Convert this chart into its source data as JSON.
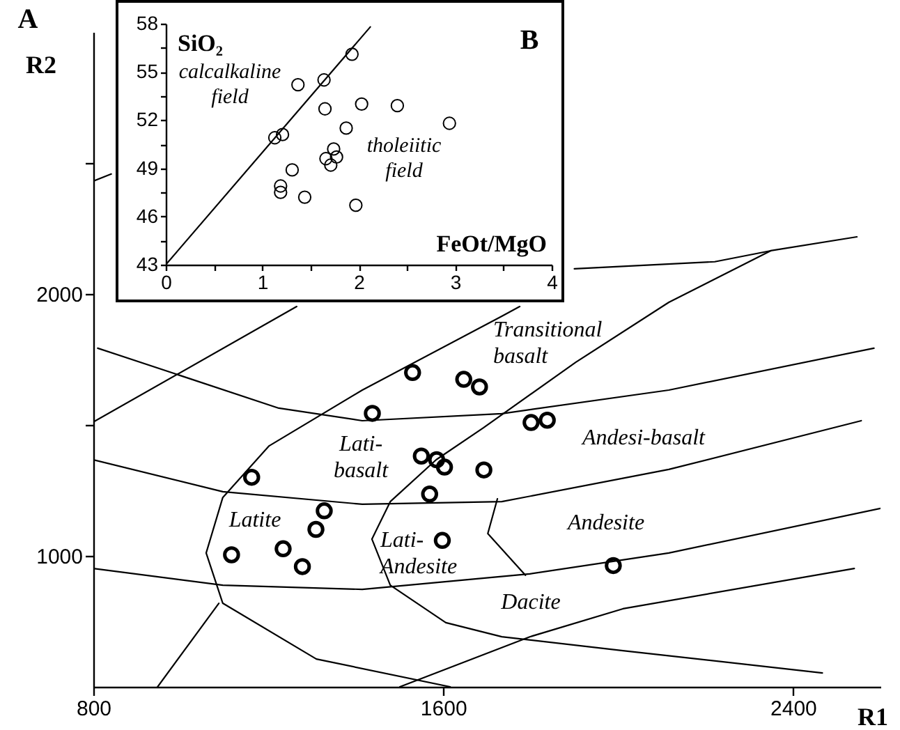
{
  "chart_data": [
    {
      "type": "scatter",
      "xlabel": "R1",
      "ylabel": "R2",
      "xlim": [
        800,
        2600
      ],
      "ylim": [
        500,
        3000
      ],
      "xticks": [
        800,
        1600,
        2400
      ],
      "yticks": [
        1000,
        {
          "value": 1500,
          "label": null
        },
        2000,
        {
          "value": 2500,
          "label": null
        }
      ],
      "annotations": [
        "A",
        "Transitional\nbasalt",
        "Lati-\nbasalt",
        "Andesi-basalt",
        "Latite",
        "Lati-\nAndesite",
        "Andesite",
        "Dacite"
      ],
      "series": [
        {
          "type": "line",
          "color": "#000000",
          "x": [
            800,
            1265
          ],
          "values": [
            1511,
            1952
          ]
        },
        {
          "type": "line",
          "color": "#000000",
          "x": [
            800,
            841
          ],
          "values": [
            2431,
            2458
          ]
        },
        {
          "type": "line",
          "color": "#000000",
          "x": [
            810,
            1224,
            1415,
            1734,
            2116,
            2585
          ],
          "values": [
            1793,
            1564,
            1516,
            1543,
            1633,
            1793
          ]
        },
        {
          "type": "line",
          "color": "#000000",
          "x": [
            800,
            1096,
            1415,
            1734,
            2116,
            2556
          ],
          "values": [
            1367,
            1245,
            1197,
            1207,
            1330,
            1516
          ]
        },
        {
          "type": "line",
          "color": "#000000",
          "x": [
            800,
            1096,
            1415,
            1798,
            2116,
            2600
          ],
          "values": [
            952,
            888,
            872,
            931,
            1011,
            1181
          ]
        },
        {
          "type": "line",
          "color": "#000000",
          "x": [
            1501,
            1798,
            2011,
            2540
          ],
          "values": [
            500,
            691,
            798,
            952
          ]
        },
        {
          "type": "line",
          "color": "#000000",
          "x": [
            2467,
            2011,
            1734,
            1606,
            1479,
            1437,
            1479,
            1584,
            1692,
            1903,
            2116,
            2349
          ],
          "values": [
            553,
            638,
            691,
            745,
            888,
            1064,
            1207,
            1367,
            1489,
            1739,
            1968,
            2165
          ]
        },
        {
          "type": "line",
          "color": "#000000",
          "x": [
            1775,
            1734,
            1415,
            1202,
            1096,
            1058,
            1096,
            1310,
            1616
          ],
          "values": [
            1952,
            1915,
            1633,
            1420,
            1223,
            1011,
            819,
            606,
            500
          ]
        },
        {
          "type": "line",
          "color": "#000000",
          "x": [
            947,
            1087
          ],
          "values": [
            500,
            819
          ]
        },
        {
          "type": "line",
          "color": "#000000",
          "x": [
            1724,
            1702,
            1788
          ],
          "values": [
            1218,
            1085,
            926
          ]
        },
        {
          "type": "line",
          "color": "#000000",
          "x": [
            1900,
            2221,
            2349,
            2546
          ],
          "values": [
            2096,
            2123,
            2165,
            2218
          ]
        },
        {
          "type": "scatter",
          "marker": "circle",
          "color": "#000000",
          "x": [
            1530,
            1647,
            1683,
            1438,
            1550,
            1585,
            1603,
            1693,
            1569,
            1162,
            1328,
            1309,
            1116,
            1234,
            1278,
            1598,
            1801,
            1838,
            1989
          ],
          "values": [
            1700,
            1674,
            1645,
            1544,
            1381,
            1367,
            1339,
            1328,
            1236,
            1300,
            1172,
            1101,
            1004,
            1027,
            959,
            1059,
            1509,
            1518,
            963
          ]
        }
      ]
    },
    {
      "type": "scatter",
      "xlabel": "FeOt/MgO",
      "ylabel": "SiO₂",
      "xlim": [
        0,
        4
      ],
      "ylim": [
        43,
        58
      ],
      "xticks": [
        0,
        {
          "value": 0.5,
          "label": null
        },
        1,
        {
          "value": 1.5,
          "label": null
        },
        2,
        {
          "value": 2.5,
          "label": null
        },
        3,
        {
          "value": 3.5,
          "label": null
        },
        4
      ],
      "yticks": [
        43,
        {
          "value": 44.5,
          "label": null
        },
        46,
        {
          "value": 47.5,
          "label": null
        },
        49,
        {
          "value": 50.5,
          "label": null
        },
        52,
        {
          "value": 53.5,
          "label": null
        },
        55,
        {
          "value": 56.5,
          "label": null
        },
        58
      ],
      "annotations": [
        "B",
        "calcalkaline\nfield",
        "tholeiitic\nfield"
      ],
      "series": [
        {
          "type": "line",
          "color": "#000000",
          "x": [
            0,
            2.12
          ],
          "values": [
            43,
            57.8
          ]
        },
        {
          "type": "scatter",
          "marker": "circle",
          "color": "#000000",
          "x": [
            1.93,
            1.64,
            1.37,
            2.03,
            2.4,
            1.65,
            1.87,
            2.94,
            1.13,
            1.21,
            1.74,
            1.77,
            1.66,
            1.71,
            1.31,
            1.19,
            1.19,
            1.44,
            1.97
          ],
          "values": [
            56.1,
            54.5,
            54.2,
            53.0,
            52.9,
            52.7,
            51.5,
            51.8,
            50.9,
            51.1,
            50.2,
            49.7,
            49.6,
            49.2,
            48.9,
            47.9,
            47.5,
            47.2,
            46.7
          ]
        }
      ]
    }
  ]
}
